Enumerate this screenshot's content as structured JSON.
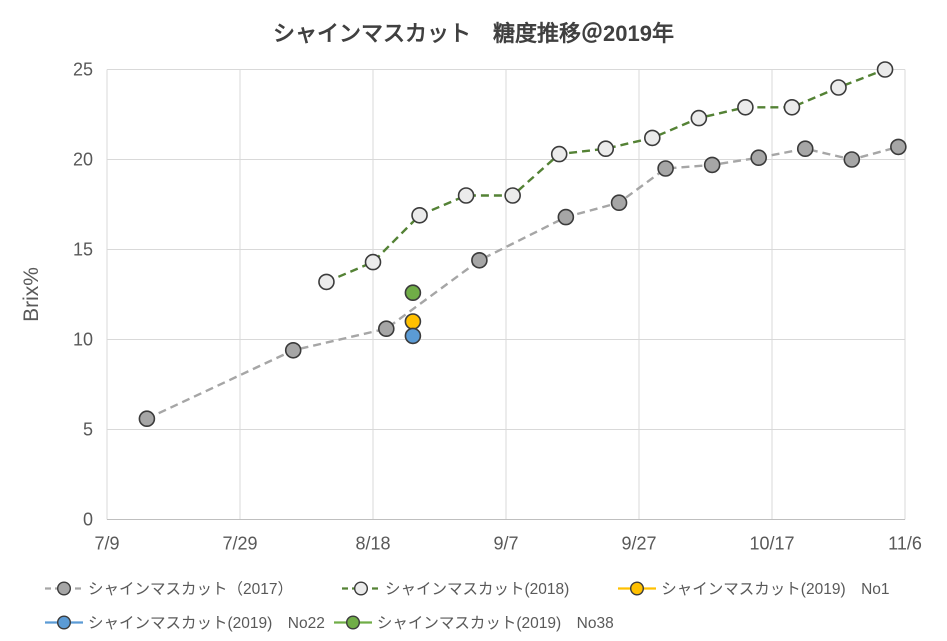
{
  "chart_data": {
    "type": "line",
    "title": "シャインマスカット　糖度推移＠2019年",
    "ylabel": "Brix%",
    "ylim": [
      0,
      25
    ],
    "yticks": [
      0,
      5,
      10,
      15,
      20,
      25
    ],
    "x_domain_days": [
      0,
      120
    ],
    "xticks": [
      {
        "label": "7/9",
        "day": 0
      },
      {
        "label": "7/29",
        "day": 20
      },
      {
        "label": "8/18",
        "day": 40
      },
      {
        "label": "9/7",
        "day": 60
      },
      {
        "label": "9/27",
        "day": 80
      },
      {
        "label": "10/17",
        "day": 100
      },
      {
        "label": "11/6",
        "day": 120
      }
    ],
    "grid": true,
    "legend_position": "bottom",
    "colors": {
      "background": "#ffffff",
      "grid": "#d9d9d9",
      "axis_line": "#bfbfbf",
      "title_text": "#404040",
      "tick_text": "#595959",
      "legend_text": "#595959",
      "marker_stroke": "#3b3b3b"
    },
    "series": [
      {
        "name": "シャインマスカット（2017）",
        "line_color": "#a6a6a6",
        "line_style": "dashed",
        "marker_fill": "#a6a6a6",
        "marker_stroke": "#3b3b3b",
        "points": [
          {
            "date": "7/15",
            "day": 6,
            "value": 5.6
          },
          {
            "date": "8/6",
            "day": 28,
            "value": 9.4
          },
          {
            "date": "8/20",
            "day": 42,
            "value": 10.6
          },
          {
            "date": "9/3",
            "day": 56,
            "value": 14.4
          },
          {
            "date": "9/16",
            "day": 69,
            "value": 16.8
          },
          {
            "date": "9/24",
            "day": 77,
            "value": 17.6
          },
          {
            "date": "10/1",
            "day": 84,
            "value": 19.5
          },
          {
            "date": "10/8",
            "day": 91,
            "value": 19.7
          },
          {
            "date": "10/15",
            "day": 98,
            "value": 20.1
          },
          {
            "date": "10/22",
            "day": 105,
            "value": 20.6
          },
          {
            "date": "10/29",
            "day": 112,
            "value": 20.0
          },
          {
            "date": "11/5",
            "day": 119,
            "value": 20.7
          }
        ]
      },
      {
        "name": "シャインマスカット(2018)",
        "line_color": "#548235",
        "line_style": "dashed",
        "marker_fill": "#ebebeb",
        "marker_stroke": "#3b3b3b",
        "points": [
          {
            "date": "8/11",
            "day": 33,
            "value": 13.2
          },
          {
            "date": "8/18",
            "day": 40,
            "value": 14.3
          },
          {
            "date": "8/25",
            "day": 47,
            "value": 16.9
          },
          {
            "date": "9/1",
            "day": 54,
            "value": 18.0
          },
          {
            "date": "9/8",
            "day": 61,
            "value": 18.0
          },
          {
            "date": "9/15",
            "day": 68,
            "value": 20.3
          },
          {
            "date": "9/22",
            "day": 75,
            "value": 20.6
          },
          {
            "date": "9/29",
            "day": 82,
            "value": 21.2
          },
          {
            "date": "10/6",
            "day": 89,
            "value": 22.3
          },
          {
            "date": "10/13",
            "day": 96,
            "value": 22.9
          },
          {
            "date": "10/20",
            "day": 103,
            "value": 22.9
          },
          {
            "date": "10/27",
            "day": 110,
            "value": 24.0
          },
          {
            "date": "11/3",
            "day": 117,
            "value": 25.0
          }
        ]
      },
      {
        "name": "シャインマスカット(2019)　No1",
        "line_color": "#ffc000",
        "line_style": "solid",
        "marker_fill": "#ffc000",
        "marker_stroke": "#3b3b3b",
        "points": [
          {
            "date": "8/24",
            "day": 46,
            "value": 11.0
          }
        ]
      },
      {
        "name": "シャインマスカット(2019)　No22",
        "line_color": "#5b9bd5",
        "line_style": "solid",
        "marker_fill": "#5b9bd5",
        "marker_stroke": "#3b3b3b",
        "points": [
          {
            "date": "8/24",
            "day": 46,
            "value": 10.2
          }
        ]
      },
      {
        "name": "シャインマスカット(2019)　No38",
        "line_color": "#70ad47",
        "line_style": "solid",
        "marker_fill": "#70ad47",
        "marker_stroke": "#3b3b3b",
        "points": [
          {
            "date": "8/24",
            "day": 46,
            "value": 12.6
          }
        ]
      }
    ]
  }
}
